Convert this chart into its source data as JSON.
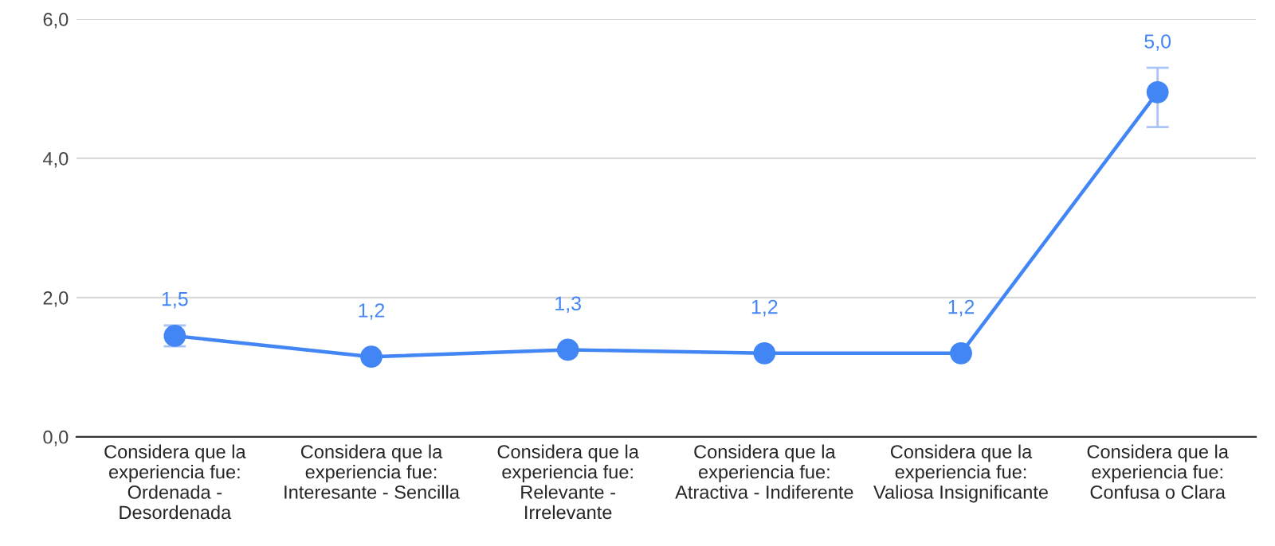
{
  "chart_data": {
    "type": "line",
    "categories": [
      "Considera que la\nexperiencia fue:\nOrdenada -\nDesordenada",
      "Considera que la\nexperiencia fue:\nInteresante - Sencilla",
      "Considera que la\nexperiencia fue:\nRelevante -\nIrrelevante",
      "Considera que la\nexperiencia fue:\nAtractiva - Indiferente",
      "Considera que la\nexperiencia fue:\nValiosa Insignificante",
      "Considera que la\nexperiencia fue:\nConfusa o Clara"
    ],
    "series": [
      {
        "color": "#4285f4",
        "values": [
          1.45,
          1.15,
          1.25,
          1.2,
          1.2,
          4.95
        ],
        "errors": [
          [
            1.3,
            1.6
          ],
          null,
          null,
          null,
          null,
          [
            4.45,
            5.3
          ]
        ],
        "value_labels": [
          "1,5",
          "1,2",
          "1,3",
          "1,2",
          "1,2",
          "5,0"
        ]
      }
    ],
    "ylim": [
      0,
      6
    ],
    "yticks": [
      {
        "value": 0,
        "label": "0,0"
      },
      {
        "value": 2,
        "label": "2,0"
      },
      {
        "value": 4,
        "label": "4,0"
      },
      {
        "value": 6,
        "label": "6,0"
      }
    ],
    "grid": "y",
    "marker": "circle",
    "line_style": "solid"
  }
}
